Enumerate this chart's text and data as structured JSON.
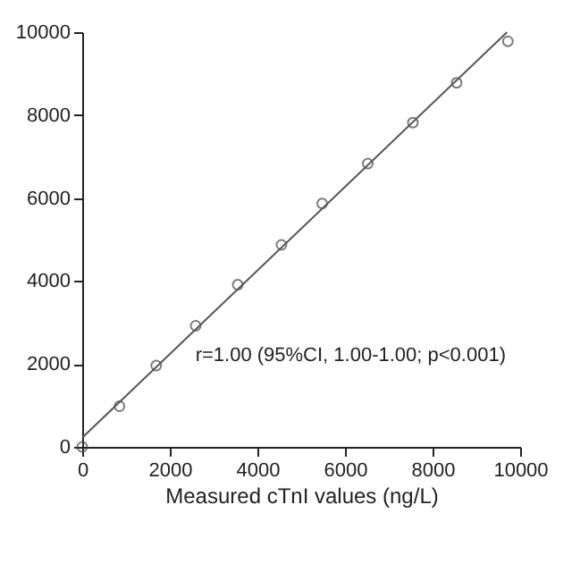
{
  "chart_data": {
    "type": "scatter",
    "xlabel": "Measured cTnI values (ng/L)",
    "series": [
      {
        "color": "#444444",
        "marker": "circle",
        "x": [
          0,
          850,
          1690,
          2590,
          3550,
          4550,
          5480,
          6520,
          7550,
          8550,
          9720
        ],
        "values": [
          0,
          980,
          1960,
          2920,
          3910,
          4870,
          5870,
          6830,
          7820,
          8780,
          9780
        ]
      },
      {
        "type": "line",
        "color": "#555555",
        "x": [
          0,
          9700
        ],
        "values": [
          220,
          10000
        ]
      }
    ],
    "xlim": [
      0,
      10000
    ],
    "ylim": [
      0,
      10000
    ],
    "xticks": [
      0,
      2000,
      4000,
      6000,
      8000,
      10000
    ],
    "yticks": [
      0,
      2000,
      4000,
      6000,
      8000,
      10000
    ],
    "grid": false,
    "annotations": [
      "r=1.00 (95%CI, 1.00-1.00; p<0.001)"
    ]
  }
}
